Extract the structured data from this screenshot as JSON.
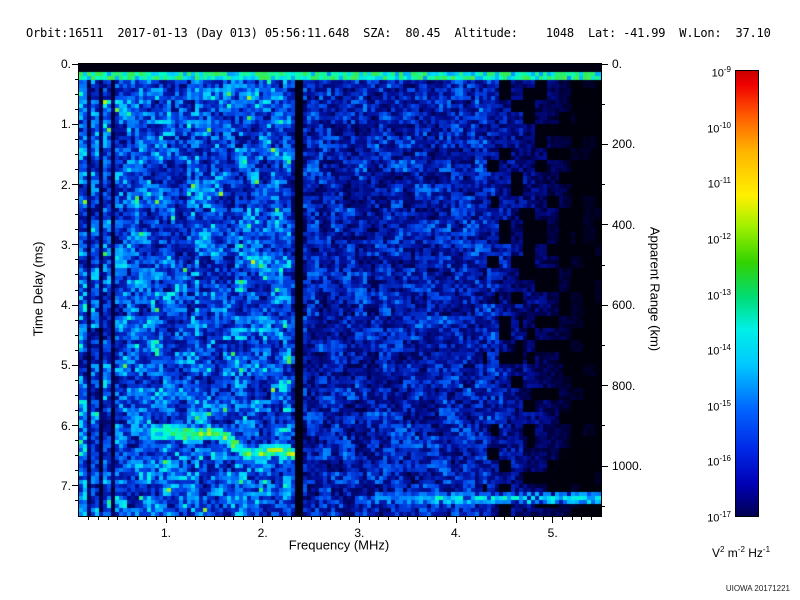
{
  "header": {
    "line": "Orbit:16511  2017-01-13 (Day 013) 05:56:11.648  SZA:  80.45  Altitude:    1048  Lat: -41.99  W.Lon:  37.10"
  },
  "chart_data": {
    "type": "heatmap",
    "xlabel": "Frequency (MHz)",
    "ylabel_left": "Time Delay (ms)",
    "ylabel_right": "Apparent Range (km)",
    "xlim": [
      0.1,
      5.5
    ],
    "ylim_ms": [
      0.0,
      7.5
    ],
    "x_ticks": [
      {
        "v": 1,
        "label": "1."
      },
      {
        "v": 2,
        "label": "2."
      },
      {
        "v": 3,
        "label": "3."
      },
      {
        "v": 4,
        "label": "4."
      },
      {
        "v": 5,
        "label": "5."
      }
    ],
    "x_minor_step": 0.1,
    "y_ticks_ms": [
      {
        "v": 0,
        "label": "0."
      },
      {
        "v": 1,
        "label": "1."
      },
      {
        "v": 2,
        "label": "2."
      },
      {
        "v": 3,
        "label": "3."
      },
      {
        "v": 4,
        "label": "4."
      },
      {
        "v": 5,
        "label": "5."
      },
      {
        "v": 6,
        "label": "6."
      },
      {
        "v": 7,
        "label": "7."
      }
    ],
    "y_minor_step_ms": 0.25,
    "range_ticks_km": [
      {
        "v": 0,
        "label": "0."
      },
      {
        "v": 200,
        "label": "200."
      },
      {
        "v": 400,
        "label": "400."
      },
      {
        "v": 600,
        "label": "600."
      },
      {
        "v": 800,
        "label": "800."
      },
      {
        "v": 1000,
        "label": "1000."
      }
    ],
    "range_minor_step_km": 100,
    "km_per_ms": 149.896,
    "colorbar": {
      "scale": "log",
      "tick_base": "10",
      "tick_exponents": [
        -9,
        -10,
        -11,
        -12,
        -13,
        -14,
        -15,
        -16,
        -17
      ],
      "unit_parts": [
        {
          "t": "V",
          "e": "2"
        },
        {
          "t": "m",
          "e": "-2"
        },
        {
          "t": "Hz",
          "e": "-1"
        }
      ],
      "top_color": "#dd0000",
      "bottom_color": "#000050"
    },
    "features": {
      "transmit_blank_band": {
        "delay_ms": [
          0.0,
          0.12
        ],
        "freq_mhz": [
          0.1,
          5.5
        ]
      },
      "leakage_line": {
        "delay_ms": [
          0.12,
          0.24
        ],
        "freq_mhz": [
          0.1,
          5.5
        ]
      },
      "interference_columns_mhz": [
        [
          0.195,
          0.225
        ],
        [
          0.3,
          0.335
        ],
        [
          0.445,
          0.475
        ],
        [
          0.62,
          0.64
        ]
      ],
      "blank_column_mhz": [
        2.33,
        2.42
      ],
      "bright_column_mhz": [
        1.29,
        1.34
      ],
      "ionosphere_trace": {
        "freq_mhz": [
          0.85,
          2.32
        ],
        "delay_start_ms": 6.13,
        "delay_end_ms": 6.45
      },
      "ground_trace": {
        "freq_mhz": [
          3.15,
          5.5
        ],
        "delay_ms": 7.22
      },
      "noise_bright_region_mhz": [
        0.1,
        2.3
      ],
      "noise_fade_start_mhz": 4.3
    },
    "seed": 20171221
  },
  "footer": {
    "watermark": "UIOWA 20171221"
  }
}
